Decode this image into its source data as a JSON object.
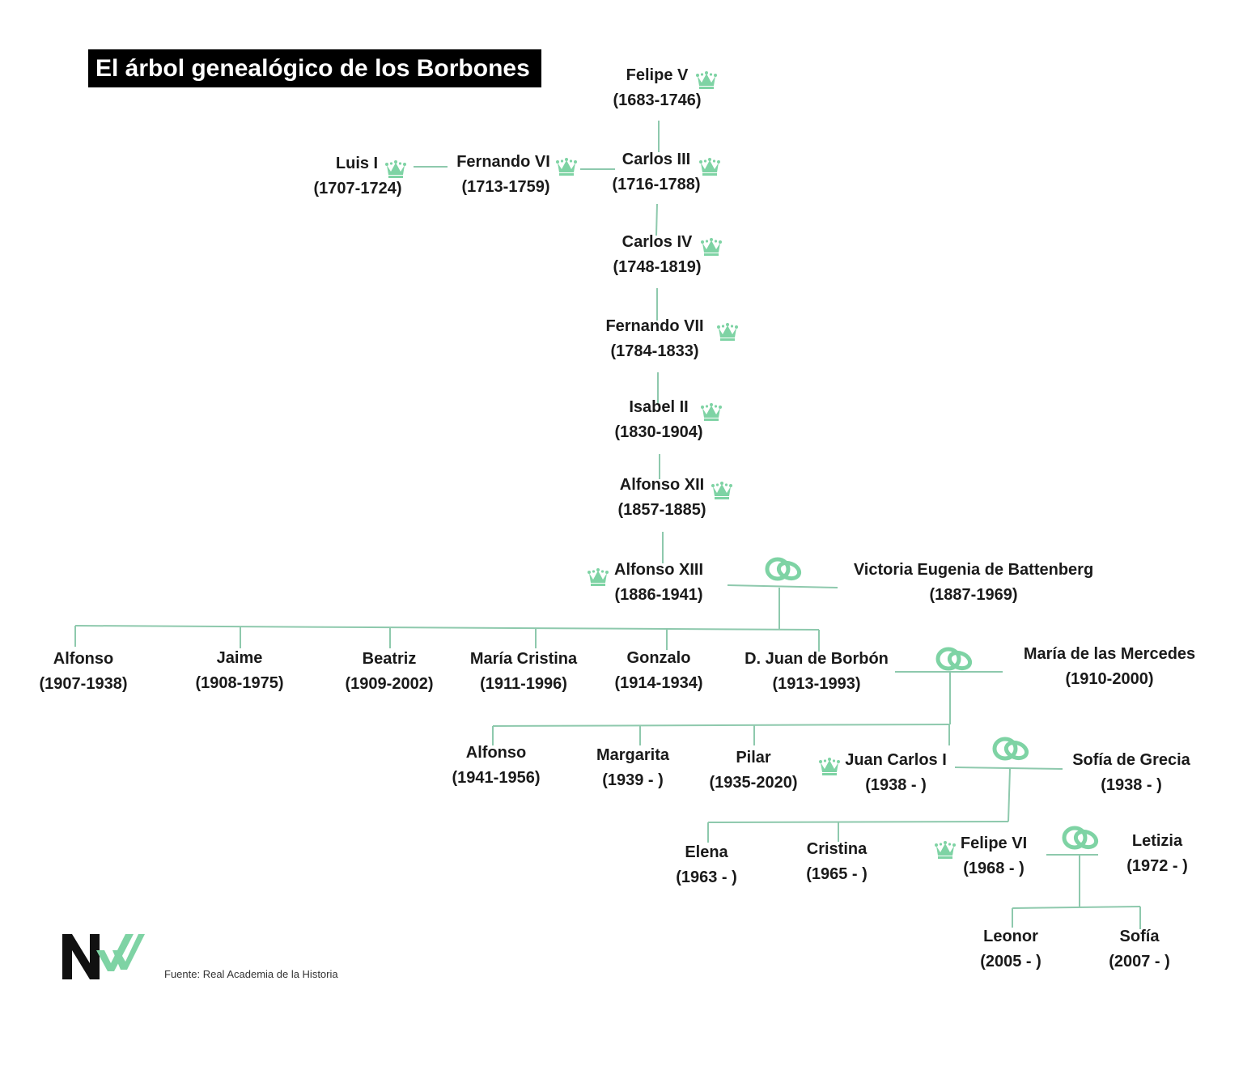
{
  "title": "El árbol genealógico de los Borbones",
  "source": "Fuente: Real Academia de la Historia",
  "colors": {
    "line": "#8ec9ad",
    "accent": "#7ed3a4",
    "title_bg": "#000000",
    "title_text": "#ffffff"
  },
  "icons": {
    "crown": "crown-icon",
    "marriage": "wedding-rings-icon"
  },
  "people": [
    {
      "id": "felipe-v",
      "name": "Felipe V",
      "years": "(1683-1746)",
      "crown": true
    },
    {
      "id": "luis-i",
      "name": "Luis I",
      "years": "(1707-1724)",
      "crown": true
    },
    {
      "id": "fernando-vi",
      "name": "Fernando VI",
      "years": "(1713-1759)",
      "crown": true
    },
    {
      "id": "carlos-iii",
      "name": "Carlos III",
      "years": "(1716-1788)",
      "crown": true
    },
    {
      "id": "carlos-iv",
      "name": "Carlos IV",
      "years": "(1748-1819)",
      "crown": true
    },
    {
      "id": "fernando-vii",
      "name": "Fernando VII",
      "years": "(1784-1833)",
      "crown": true
    },
    {
      "id": "isabel-ii",
      "name": "Isabel II",
      "years": "(1830-1904)",
      "crown": true
    },
    {
      "id": "alfonso-xii",
      "name": "Alfonso XII",
      "years": "(1857-1885)",
      "crown": true
    },
    {
      "id": "alfonso-xiii",
      "name": "Alfonso XIII",
      "years": "(1886-1941)",
      "crown": true
    },
    {
      "id": "victoria-eugenia",
      "name": "Victoria Eugenia de Battenberg",
      "years": "(1887-1969)",
      "crown": false
    },
    {
      "id": "alfonso-1907",
      "name": "Alfonso",
      "years": "(1907-1938)",
      "crown": false
    },
    {
      "id": "jaime",
      "name": "Jaime",
      "years": "(1908-1975)",
      "crown": false
    },
    {
      "id": "beatriz",
      "name": "Beatriz",
      "years": "(1909-2002)",
      "crown": false
    },
    {
      "id": "maria-cristina",
      "name": "María Cristina",
      "years": "(1911-1996)",
      "crown": false
    },
    {
      "id": "gonzalo",
      "name": "Gonzalo",
      "years": "(1914-1934)",
      "crown": false
    },
    {
      "id": "juan-de-borbon",
      "name": "D. Juan de Borbón",
      "years": "(1913-1993)",
      "crown": false
    },
    {
      "id": "maria-mercedes",
      "name": "María de las Mercedes",
      "years": "(1910-2000)",
      "crown": false
    },
    {
      "id": "alfonso-1941",
      "name": "Alfonso",
      "years": "(1941-1956)",
      "crown": false
    },
    {
      "id": "margarita",
      "name": "Margarita",
      "years": "(1939 - )",
      "crown": false
    },
    {
      "id": "pilar",
      "name": "Pilar",
      "years": "(1935-2020)",
      "crown": false
    },
    {
      "id": "juan-carlos-i",
      "name": "Juan Carlos I",
      "years": "(1938 - )",
      "crown": true
    },
    {
      "id": "sofia-grecia",
      "name": "Sofía de Grecia",
      "years": "(1938 - )",
      "crown": false
    },
    {
      "id": "elena",
      "name": "Elena",
      "years": "(1963 - )",
      "crown": false
    },
    {
      "id": "cristina",
      "name": "Cristina",
      "years": "(1965 - )",
      "crown": false
    },
    {
      "id": "felipe-vi",
      "name": "Felipe VI",
      "years": "(1968 - )",
      "crown": true
    },
    {
      "id": "letizia",
      "name": "Letizia",
      "years": "(1972 - )",
      "crown": false
    },
    {
      "id": "leonor",
      "name": "Leonor",
      "years": "(2005 - )",
      "crown": false
    },
    {
      "id": "sofia",
      "name": "Sofía",
      "years": "(2007 - )",
      "crown": false
    }
  ],
  "marriages": [
    {
      "a": "alfonso-xiii",
      "b": "victoria-eugenia"
    },
    {
      "a": "juan-de-borbon",
      "b": "maria-mercedes"
    },
    {
      "a": "juan-carlos-i",
      "b": "sofia-grecia"
    },
    {
      "a": "felipe-vi",
      "b": "letizia"
    }
  ]
}
